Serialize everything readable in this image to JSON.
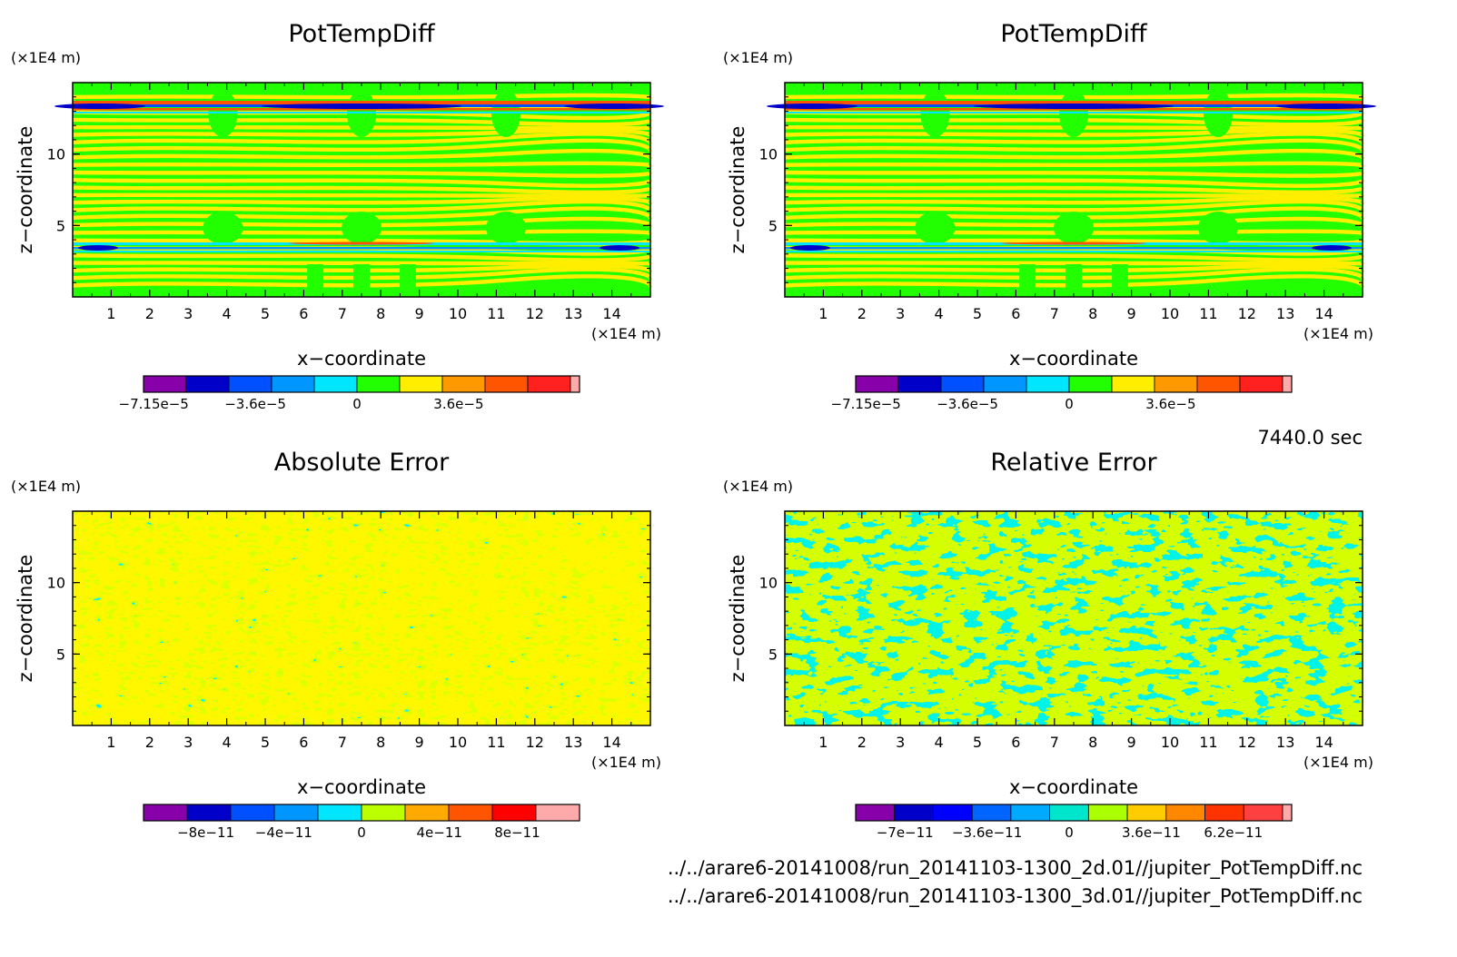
{
  "chart_data": [
    {
      "type": "heatmap",
      "title": "PotTempDiff",
      "xlabel": "x−coordinate",
      "ylabel": "z−coordinate",
      "x_unit": "(×1E4 m)",
      "y_unit": "(×1E4 m)",
      "xlim": [
        0,
        15
      ],
      "ylim": [
        0,
        15
      ],
      "x_ticks": [
        "1",
        "2",
        "3",
        "4",
        "5",
        "6",
        "7",
        "8",
        "9",
        "10",
        "11",
        "12",
        "13",
        "14"
      ],
      "y_ticks": [
        "5",
        "10"
      ],
      "pattern": "layers",
      "colorbar": {
        "colors": [
          "#8800aa",
          "#0000c8",
          "#0050ff",
          "#0096ff",
          "#00e6ff",
          "#22ff00",
          "#ffee00",
          "#ff9900",
          "#ff5500",
          "#ff2020",
          "#ffaaaa"
        ],
        "tick_labels": [
          "−7.15e−5",
          "−3.6e−5",
          "0",
          "3.6e−5"
        ]
      }
    },
    {
      "type": "heatmap",
      "title": "PotTempDiff",
      "xlabel": "x−coordinate",
      "ylabel": "z−coordinate",
      "x_unit": "(×1E4 m)",
      "y_unit": "(×1E4 m)",
      "xlim": [
        0,
        15
      ],
      "ylim": [
        0,
        15
      ],
      "x_ticks": [
        "1",
        "2",
        "3",
        "4",
        "5",
        "6",
        "7",
        "8",
        "9",
        "10",
        "11",
        "12",
        "13",
        "14"
      ],
      "y_ticks": [
        "5",
        "10"
      ],
      "pattern": "layers",
      "colorbar": {
        "colors": [
          "#8800aa",
          "#0000c8",
          "#0050ff",
          "#0096ff",
          "#00e6ff",
          "#22ff00",
          "#ffee00",
          "#ff9900",
          "#ff5500",
          "#ff2020",
          "#ffaaaa"
        ],
        "tick_labels": [
          "−7.15e−5",
          "−3.6e−5",
          "0",
          "3.6e−5"
        ]
      }
    },
    {
      "type": "heatmap",
      "title": "Absolute Error",
      "xlabel": "x−coordinate",
      "ylabel": "z−coordinate",
      "x_unit": "(×1E4 m)",
      "y_unit": "(×1E4 m)",
      "xlim": [
        0,
        15
      ],
      "ylim": [
        0,
        15
      ],
      "x_ticks": [
        "1",
        "2",
        "3",
        "4",
        "5",
        "6",
        "7",
        "8",
        "9",
        "10",
        "11",
        "12",
        "13",
        "14"
      ],
      "y_ticks": [
        "5",
        "10"
      ],
      "pattern": "noise-abs",
      "colorbar": {
        "colors": [
          "#8800aa",
          "#0000c8",
          "#0050ff",
          "#0096ff",
          "#00e6ff",
          "#bbff00",
          "#ffaa00",
          "#ff5500",
          "#ff0000",
          "#ffaaaa"
        ],
        "tick_labels": [
          "−8e−11",
          "−4e−11",
          "0",
          "4e−11",
          "8e−11"
        ]
      }
    },
    {
      "type": "heatmap",
      "title": "Relative Error",
      "xlabel": "x−coordinate",
      "ylabel": "z−coordinate",
      "x_unit": "(×1E4 m)",
      "y_unit": "(×1E4 m)",
      "xlim": [
        0,
        15
      ],
      "ylim": [
        0,
        15
      ],
      "x_ticks": [
        "1",
        "2",
        "3",
        "4",
        "5",
        "6",
        "7",
        "8",
        "9",
        "10",
        "11",
        "12",
        "13",
        "14"
      ],
      "y_ticks": [
        "5",
        "10"
      ],
      "pattern": "noise-rel",
      "colorbar": {
        "colors": [
          "#8800aa",
          "#0000c8",
          "#0000ff",
          "#0064ff",
          "#00aaff",
          "#00e6cc",
          "#aaff00",
          "#ffcc00",
          "#ff8800",
          "#ff3300",
          "#ff4040",
          "#ffaaaa"
        ],
        "tick_labels": [
          "−7e−11",
          "−3.6e−11",
          "0",
          "3.6e−11",
          "6.2e−11"
        ]
      }
    }
  ],
  "timestamp": "7440.0 sec",
  "footer": [
    "../../arare6-20141008/run_20141103-1300_2d.01//jupiter_PotTempDiff.nc",
    "../../arare6-20141008/run_20141103-1300_3d.01//jupiter_PotTempDiff.nc"
  ]
}
